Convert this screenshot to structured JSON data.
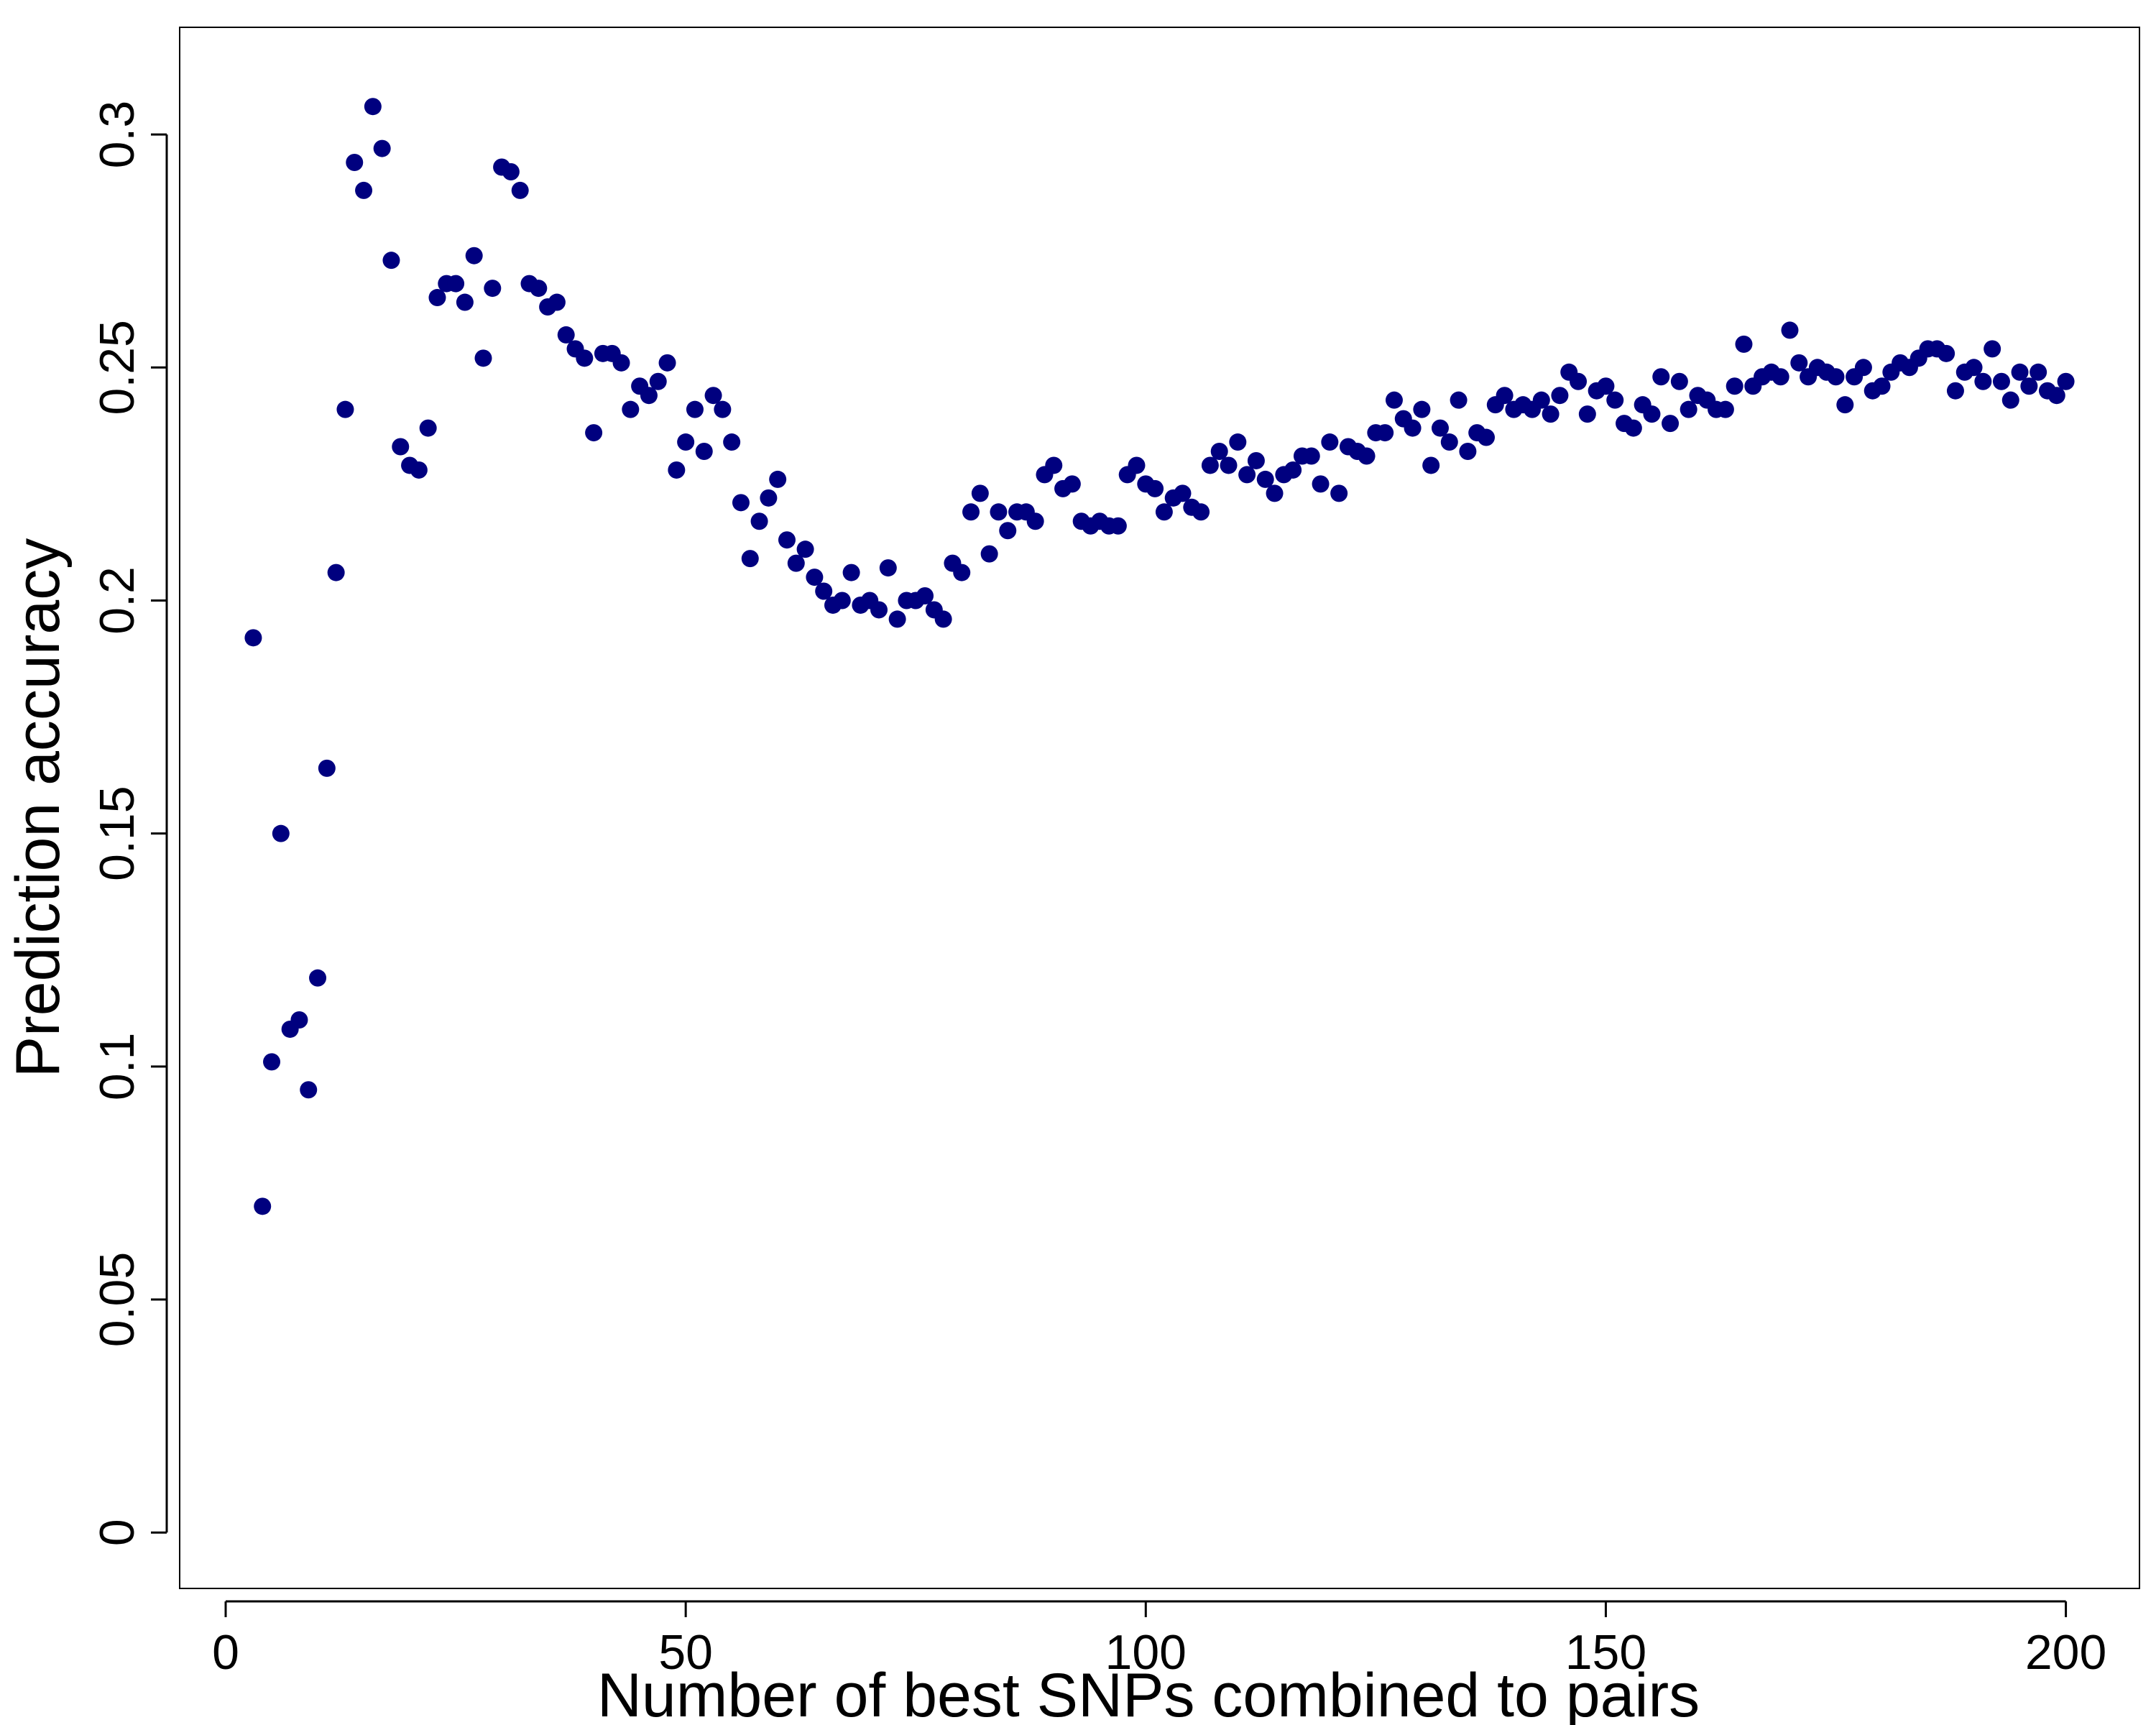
{
  "chart_data": {
    "type": "scatter",
    "title": "",
    "xlabel": "Number of best SNPs combined to pairs",
    "ylabel": "Prediction accuracy",
    "xlim": [
      -5,
      208
    ],
    "ylim": [
      -0.012,
      0.323
    ],
    "x_ticks": [
      0,
      50,
      100,
      150,
      200
    ],
    "y_ticks": [
      0,
      0.05,
      0.1,
      0.15,
      0.2,
      0.25,
      0.3
    ],
    "x_tick_labels": [
      "0",
      "50",
      "100",
      "150",
      "200"
    ],
    "y_tick_labels": [
      "0",
      "0.05",
      "0.1",
      "0.15",
      "0.2",
      "0.25",
      "0.3"
    ],
    "grid": false,
    "legend": "none",
    "marker_color": "#00007f",
    "x": [
      3,
      4,
      5,
      6,
      7,
      8,
      9,
      10,
      11,
      12,
      13,
      14,
      15,
      16,
      17,
      18,
      19,
      20,
      21,
      22,
      23,
      24,
      25,
      26,
      27,
      28,
      29,
      30,
      31,
      32,
      33,
      34,
      35,
      36,
      37,
      38,
      39,
      40,
      41,
      42,
      43,
      44,
      45,
      46,
      47,
      48,
      49,
      50,
      51,
      52,
      53,
      54,
      55,
      56,
      57,
      58,
      59,
      60,
      61,
      62,
      63,
      64,
      65,
      66,
      67,
      68,
      69,
      70,
      71,
      72,
      73,
      74,
      75,
      76,
      77,
      78,
      79,
      80,
      81,
      82,
      83,
      84,
      85,
      86,
      87,
      88,
      89,
      90,
      91,
      92,
      93,
      94,
      95,
      96,
      97,
      98,
      99,
      100,
      101,
      102,
      103,
      104,
      105,
      106,
      107,
      108,
      109,
      110,
      111,
      112,
      113,
      114,
      115,
      116,
      117,
      118,
      119,
      120,
      121,
      122,
      123,
      124,
      125,
      126,
      127,
      128,
      129,
      130,
      131,
      132,
      133,
      134,
      135,
      136,
      137,
      138,
      139,
      140,
      141,
      142,
      143,
      144,
      145,
      146,
      147,
      148,
      149,
      150,
      151,
      152,
      153,
      154,
      155,
      156,
      157,
      158,
      159,
      160,
      161,
      162,
      163,
      164,
      165,
      166,
      167,
      168,
      169,
      170,
      171,
      172,
      173,
      174,
      175,
      176,
      177,
      178,
      179,
      180,
      181,
      182,
      183,
      184,
      185,
      186,
      187,
      188,
      189,
      190,
      191,
      192,
      193,
      194,
      195,
      196,
      197,
      198,
      199,
      200
    ],
    "y": [
      0.192,
      0.07,
      0.101,
      0.15,
      0.108,
      0.11,
      0.095,
      0.119,
      0.164,
      0.206,
      0.241,
      0.294,
      0.288,
      0.306,
      0.297,
      0.273,
      0.233,
      0.229,
      0.228,
      0.237,
      0.265,
      0.268,
      0.268,
      0.264,
      0.274,
      0.252,
      0.267,
      0.293,
      0.292,
      0.288,
      0.268,
      0.267,
      0.263,
      0.264,
      0.257,
      0.254,
      0.252,
      0.236,
      0.253,
      0.253,
      0.251,
      0.241,
      0.246,
      0.244,
      0.247,
      0.251,
      0.228,
      0.234,
      0.241,
      0.232,
      0.244,
      0.241,
      0.234,
      0.221,
      0.209,
      0.217,
      0.222,
      0.226,
      0.213,
      0.208,
      0.211,
      0.205,
      0.202,
      0.199,
      0.2,
      0.206,
      0.199,
      0.2,
      0.198,
      0.207,
      0.196,
      0.2,
      0.2,
      0.201,
      0.198,
      0.196,
      0.208,
      0.206,
      0.219,
      0.223,
      0.21,
      0.219,
      0.215,
      0.219,
      0.219,
      0.217,
      0.227,
      0.229,
      0.224,
      0.225,
      0.217,
      0.216,
      0.217,
      0.216,
      0.216,
      0.227,
      0.229,
      0.225,
      0.224,
      0.219,
      0.222,
      0.223,
      0.22,
      0.219,
      0.229,
      0.232,
      0.229,
      0.234,
      0.227,
      0.23,
      0.226,
      0.223,
      0.227,
      0.228,
      0.231,
      0.231,
      0.225,
      0.234,
      0.223,
      0.233,
      0.232,
      0.231,
      0.236,
      0.236,
      0.243,
      0.239,
      0.237,
      0.241,
      0.229,
      0.237,
      0.234,
      0.243,
      0.232,
      0.236,
      0.235,
      0.242,
      0.244,
      0.241,
      0.242,
      0.241,
      0.243,
      0.24,
      0.244,
      0.249,
      0.247,
      0.24,
      0.245,
      0.246,
      0.243,
      0.238,
      0.237,
      0.242,
      0.24,
      0.248,
      0.238,
      0.247,
      0.241,
      0.244,
      0.243,
      0.241,
      0.241,
      0.246,
      0.255,
      0.246,
      0.248,
      0.249,
      0.248,
      0.258,
      0.251,
      0.248,
      0.25,
      0.249,
      0.248,
      0.242,
      0.248,
      0.25,
      0.245,
      0.246,
      0.249,
      0.251,
      0.25,
      0.252,
      0.254,
      0.254,
      0.253,
      0.245,
      0.249,
      0.25,
      0.247,
      0.254,
      0.247,
      0.243,
      0.249,
      0.246,
      0.249,
      0.245,
      0.244,
      0.247
    ]
  }
}
